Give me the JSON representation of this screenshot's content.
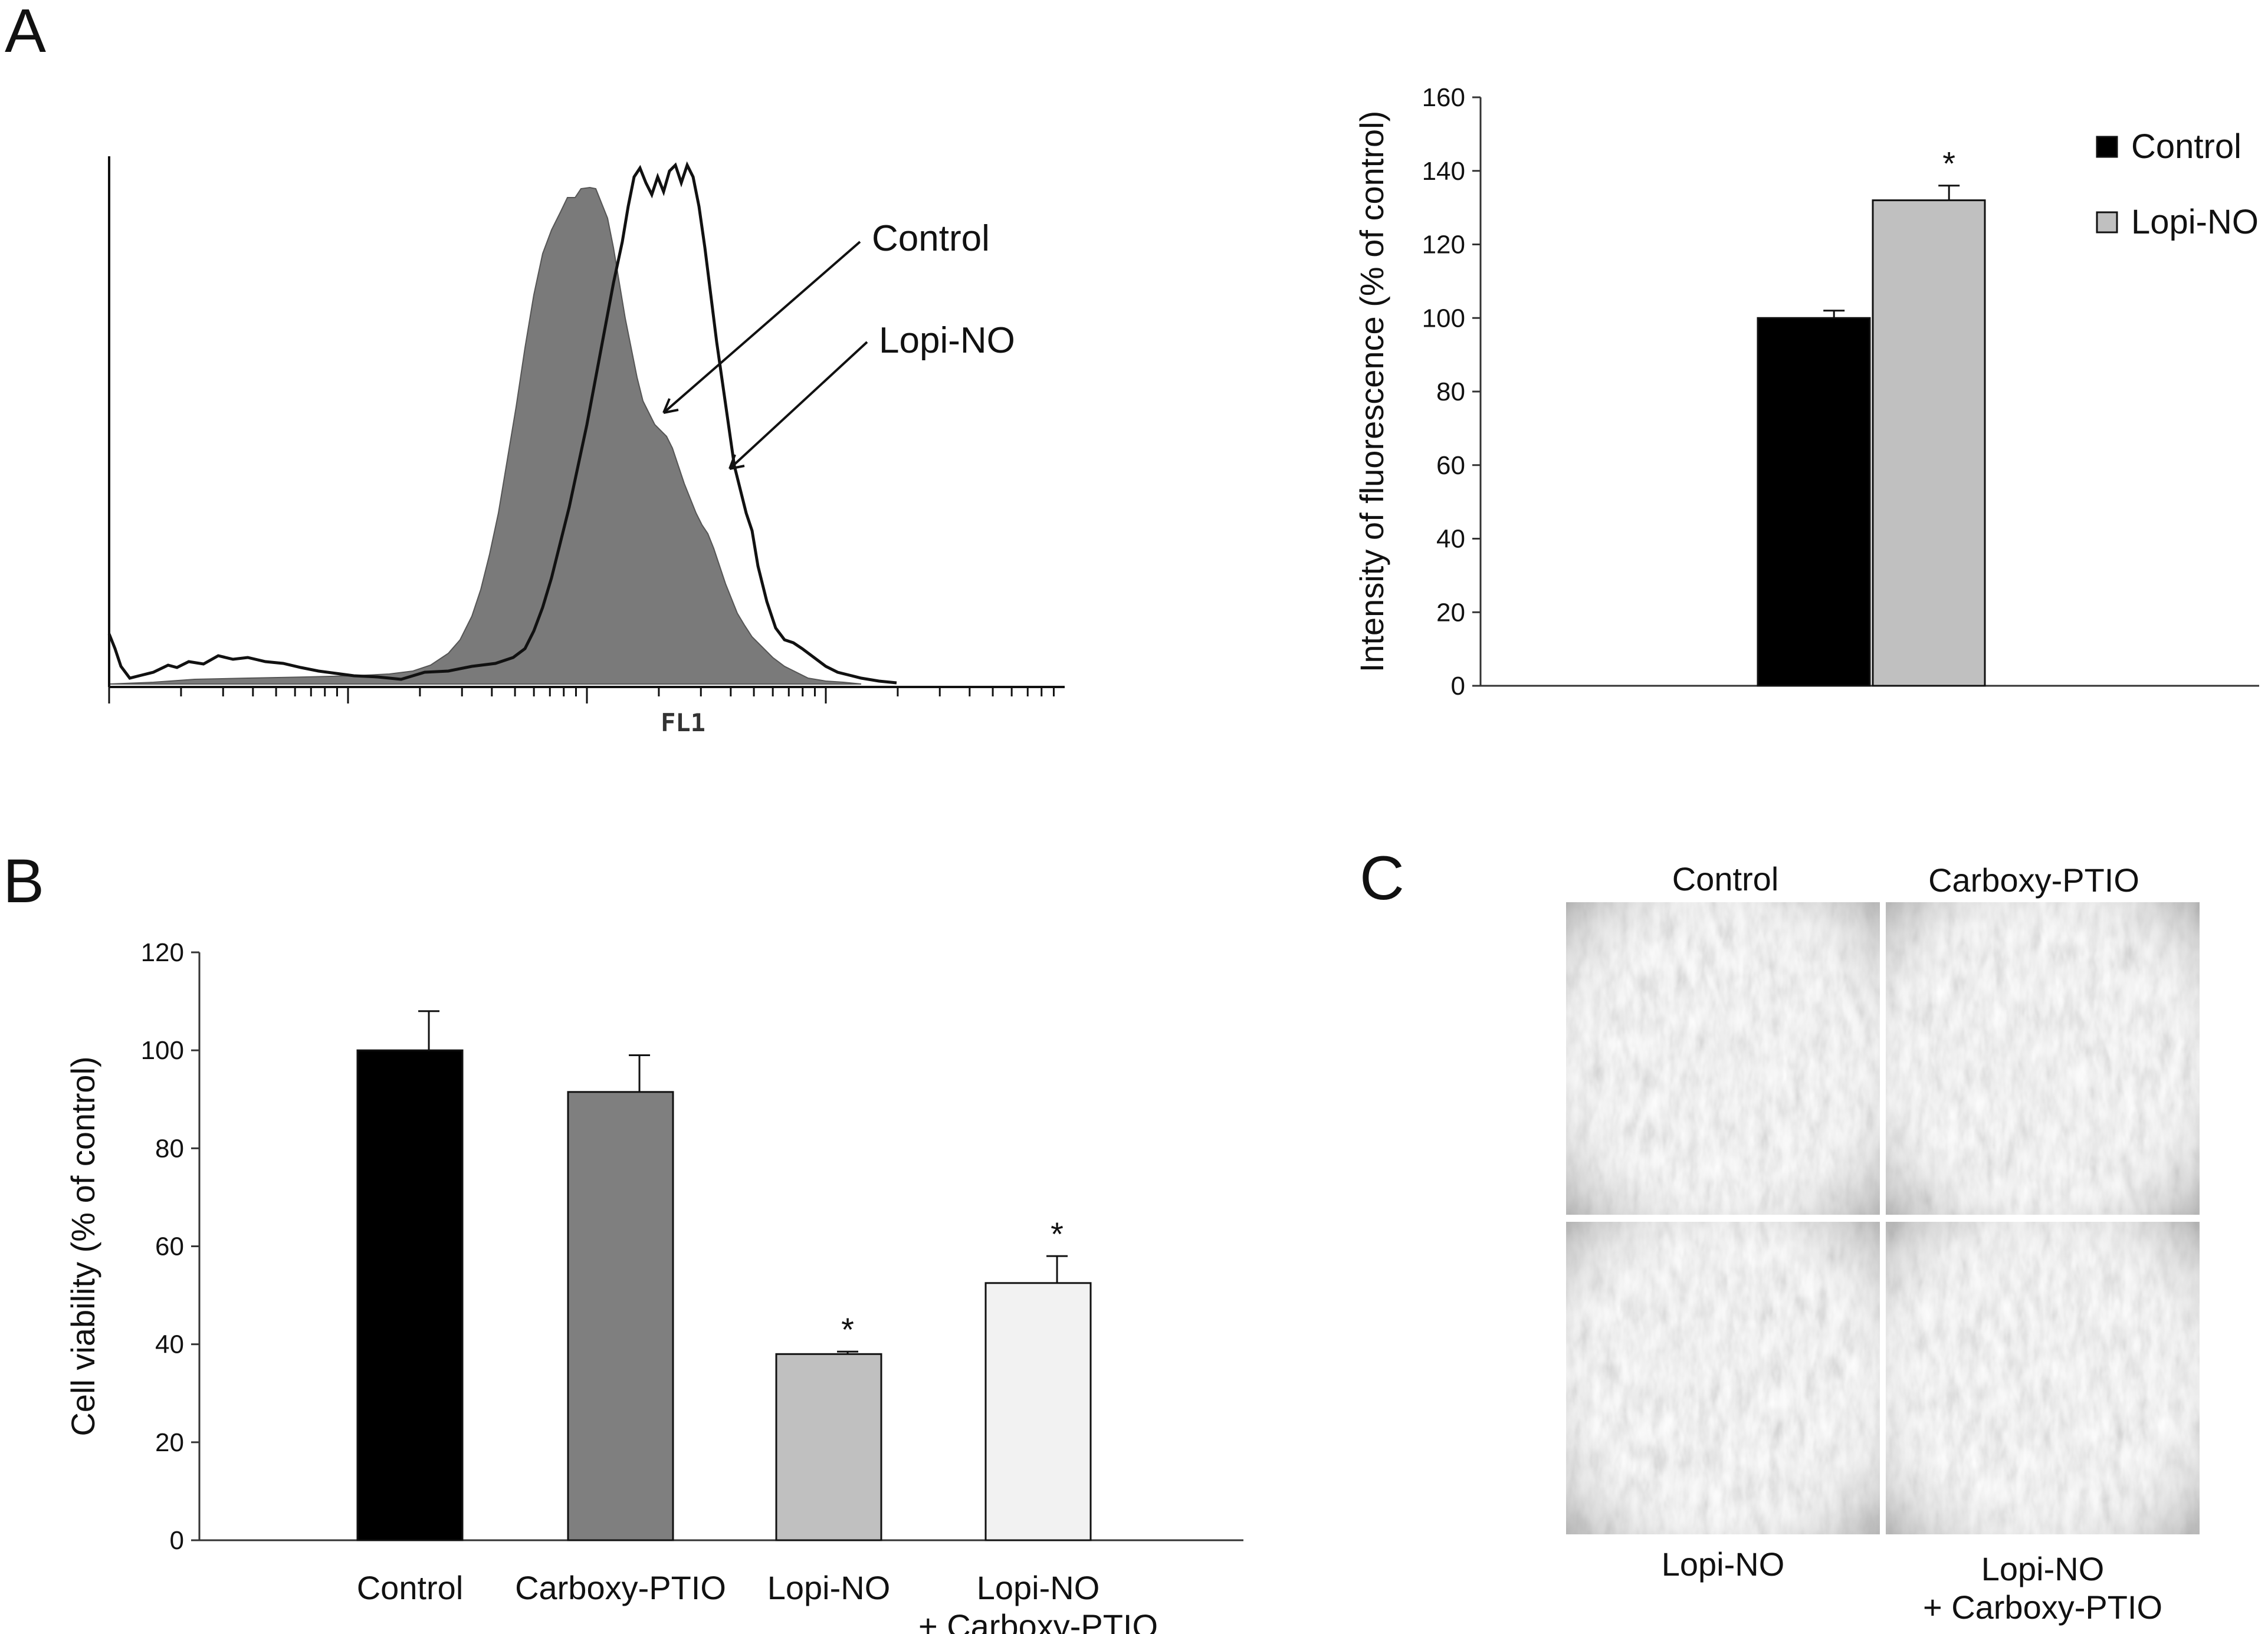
{
  "panels": {
    "a_letter": "A",
    "b_letter": "B",
    "c_letter": "C"
  },
  "histogram": {
    "x_label": "FL1",
    "annotation_control": "Control",
    "annotation_lopi": "Lopi-NO"
  },
  "chart_data": [
    {
      "id": "panel-a-bar",
      "type": "bar",
      "categories": [
        "Control",
        "Lopi-NO"
      ],
      "values": [
        100,
        132
      ],
      "errors": [
        2,
        4
      ],
      "significance": [
        "",
        "*"
      ],
      "colors": [
        "#000000",
        "#c0c0c0"
      ],
      "title": "",
      "xlabel": "",
      "ylabel": "Intensity of fluorescence (% of control)",
      "ylim": [
        0,
        160
      ],
      "yticks": [
        0,
        20,
        40,
        60,
        80,
        100,
        120,
        140,
        160
      ],
      "legend": [
        "Control",
        "Lopi-NO"
      ],
      "legend_position": "top-right"
    },
    {
      "id": "panel-b-bar",
      "type": "bar",
      "categories": [
        "Control",
        "Carboxy-PTIO",
        "Lopi-NO",
        "Lopi-NO\n+ Carboxy-PTIO"
      ],
      "values": [
        100,
        91.5,
        38,
        52.5
      ],
      "errors": [
        8,
        7.5,
        0.5,
        5.5
      ],
      "significance": [
        "",
        "",
        "*",
        "*"
      ],
      "colors": [
        "#000000",
        "#7f7f7f",
        "#c0c0c0",
        "#f2f2f2"
      ],
      "title": "",
      "xlabel": "",
      "ylabel": "Cell viability (% of control)",
      "ylim": [
        0,
        120
      ],
      "yticks": [
        0,
        20,
        40,
        60,
        80,
        100,
        120
      ]
    }
  ],
  "micrographs": {
    "top_left": "Control",
    "top_right": "Carboxy-PTIO",
    "bottom_left": "Lopi-NO",
    "bottom_right_line1": "Lopi-NO",
    "bottom_right_line2": "+ Carboxy-PTIO"
  }
}
